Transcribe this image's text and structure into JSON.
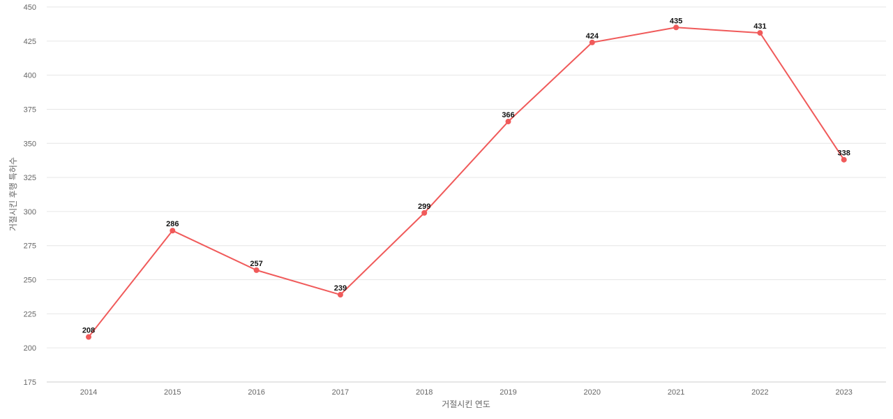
{
  "chart_data": {
    "type": "line",
    "title": "",
    "xlabel": "거절시킨 연도",
    "ylabel": "거절시킨 후행 특허수",
    "x": [
      "2014",
      "2015",
      "2016",
      "2017",
      "2018",
      "2019",
      "2020",
      "2021",
      "2022",
      "2023"
    ],
    "series": [
      {
        "values": [
          208,
          286,
          257,
          239,
          299,
          366,
          424,
          435,
          431,
          338
        ],
        "color": "#f05a5a"
      }
    ],
    "ylim": [
      175,
      450
    ],
    "yticks": [
      175,
      200,
      225,
      250,
      275,
      300,
      325,
      350,
      375,
      400,
      425,
      450
    ],
    "grid": true,
    "legend": "none"
  }
}
